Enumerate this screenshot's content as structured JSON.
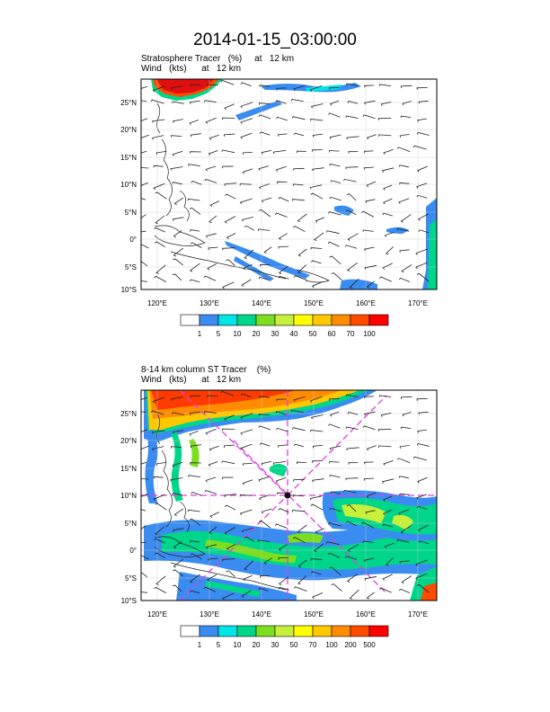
{
  "title": "2014-01-15_03:00:00",
  "panels": [
    {
      "subtitle_line1": "Stratosphere Tracer   (%)     at   12 km",
      "subtitle_line2": "Wind   (kts)      at   12 km",
      "lat_ticks": [
        "25°N",
        "20°N",
        "15°N",
        "10°N",
        "5°N",
        "0°",
        "5°S",
        "10°S"
      ],
      "lon_ticks": [
        "120°E",
        "130°E",
        "140°E",
        "150°E",
        "160°E",
        "170°E"
      ],
      "colorbar_levels": [
        "1",
        "5",
        "10",
        "20",
        "30",
        "40",
        "50",
        "60",
        "70",
        "100"
      ],
      "colorbar_colors": [
        "#ffffff",
        "#3a8cf0",
        "#00e5e5",
        "#00d68a",
        "#7cde1f",
        "#c8f03a",
        "#ffff00",
        "#ffc800",
        "#ff8c00",
        "#ff4b00",
        "#ff0000"
      ]
    },
    {
      "subtitle_line1": "8-14 km column ST Tracer    (%)",
      "subtitle_line2": "Wind   (kts)      at   12 km",
      "lat_ticks": [
        "25°N",
        "20°N",
        "15°N",
        "10°N",
        "5°N",
        "0°",
        "5°S",
        "10°S"
      ],
      "lon_ticks": [
        "120°E",
        "130°E",
        "140°E",
        "150°E",
        "160°E",
        "170°E"
      ],
      "colorbar_levels": [
        "1",
        "5",
        "10",
        "20",
        "30",
        "50",
        "70",
        "100",
        "200",
        "500"
      ],
      "colorbar_colors": [
        "#ffffff",
        "#3a8cf0",
        "#00e5e5",
        "#00d68a",
        "#7cde1f",
        "#c8f03a",
        "#ffff00",
        "#ffc800",
        "#ff8c00",
        "#ff4b00",
        "#ff0000"
      ]
    }
  ],
  "map_extent": {
    "lon": [
      116,
      173
    ],
    "lat": [
      -10,
      28
    ]
  },
  "flight_track_color": "#e040e0"
}
